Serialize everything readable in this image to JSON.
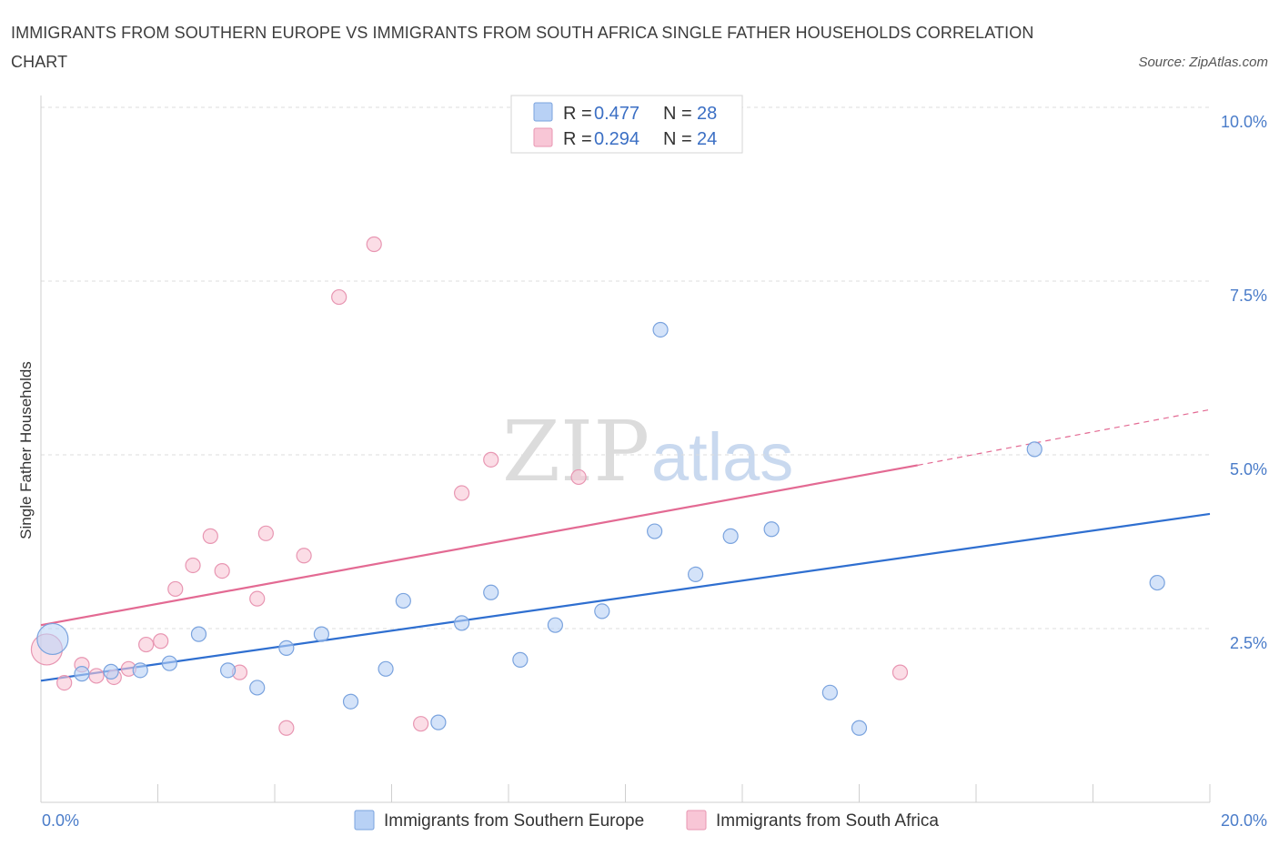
{
  "title": "IMMIGRANTS FROM SOUTHERN EUROPE VS IMMIGRANTS FROM SOUTH AFRICA SINGLE FATHER HOUSEHOLDS CORRELATION CHART",
  "source": "Source: ZipAtlas.com",
  "watermark": {
    "zip": "ZIP",
    "atlas": "atlas"
  },
  "colors": {
    "blue_fill": "#b8d1f5",
    "blue_stroke": "#7aa3de",
    "blue_line": "#2f6fd0",
    "pink_fill": "#f8c6d6",
    "pink_stroke": "#e896b2",
    "pink_line": "#e36a93",
    "grid": "#dddddd",
    "tick_label": "#4a7cc9"
  },
  "chart_data": {
    "type": "scatter",
    "title": "IMMIGRANTS FROM SOUTHERN EUROPE VS IMMIGRANTS FROM SOUTH AFRICA SINGLE FATHER HOUSEHOLDS CORRELATION CHART",
    "ylabel": "Single Father Households",
    "xlabel": "",
    "xlim": [
      0,
      20
    ],
    "ylim": [
      0,
      10
    ],
    "x_tick_labels": [
      "0.0%",
      "20.0%"
    ],
    "y_ticks": [
      2.5,
      5.0,
      7.5,
      10.0
    ],
    "y_tick_labels": [
      "2.5%",
      "5.0%",
      "7.5%",
      "10.0%"
    ],
    "grid": "horizontal dashed",
    "legend": [
      {
        "r_label": "R = ",
        "r_value": "0.477",
        "n_label": "N = ",
        "n_value": "28"
      },
      {
        "r_label": "R = ",
        "r_value": "0.294",
        "n_label": "N = ",
        "n_value": "24"
      }
    ],
    "series": [
      {
        "name": "Immigrants from Southern Europe",
        "color": "blue",
        "r": 0.477,
        "n": 28,
        "trend": {
          "x": [
            0,
            20
          ],
          "y": [
            1.75,
            4.15
          ]
        },
        "points": [
          {
            "x": 0.2,
            "y": 2.35,
            "big": true
          },
          {
            "x": 0.7,
            "y": 1.85
          },
          {
            "x": 1.2,
            "y": 1.88
          },
          {
            "x": 1.7,
            "y": 1.9
          },
          {
            "x": 2.2,
            "y": 2.0
          },
          {
            "x": 2.7,
            "y": 2.42
          },
          {
            "x": 3.2,
            "y": 1.9
          },
          {
            "x": 3.7,
            "y": 1.65
          },
          {
            "x": 4.2,
            "y": 2.22
          },
          {
            "x": 4.8,
            "y": 2.42
          },
          {
            "x": 5.3,
            "y": 1.45
          },
          {
            "x": 5.9,
            "y": 1.92
          },
          {
            "x": 6.2,
            "y": 2.9
          },
          {
            "x": 6.8,
            "y": 1.15
          },
          {
            "x": 7.2,
            "y": 2.58
          },
          {
            "x": 7.7,
            "y": 3.02
          },
          {
            "x": 8.2,
            "y": 2.05
          },
          {
            "x": 8.8,
            "y": 2.55
          },
          {
            "x": 9.6,
            "y": 2.75
          },
          {
            "x": 10.5,
            "y": 3.9
          },
          {
            "x": 10.6,
            "y": 6.8
          },
          {
            "x": 11.2,
            "y": 3.28
          },
          {
            "x": 11.8,
            "y": 3.83
          },
          {
            "x": 12.5,
            "y": 3.93
          },
          {
            "x": 13.5,
            "y": 1.58
          },
          {
            "x": 14.0,
            "y": 1.07
          },
          {
            "x": 17.0,
            "y": 5.08
          },
          {
            "x": 19.1,
            "y": 3.16
          }
        ]
      },
      {
        "name": "Immigrants from South Africa",
        "color": "pink",
        "r": 0.294,
        "n": 24,
        "trend": {
          "x": [
            0,
            15
          ],
          "y": [
            2.55,
            4.85
          ]
        },
        "trend_dashed": {
          "x": [
            15,
            20
          ],
          "y": [
            4.85,
            5.65
          ]
        },
        "points": [
          {
            "x": 0.1,
            "y": 2.2,
            "big": true
          },
          {
            "x": 0.4,
            "y": 1.72
          },
          {
            "x": 0.7,
            "y": 1.98
          },
          {
            "x": 0.95,
            "y": 1.82
          },
          {
            "x": 1.25,
            "y": 1.8
          },
          {
            "x": 1.5,
            "y": 1.92
          },
          {
            "x": 1.8,
            "y": 2.27
          },
          {
            "x": 2.05,
            "y": 2.32
          },
          {
            "x": 2.3,
            "y": 3.07
          },
          {
            "x": 2.6,
            "y": 3.41
          },
          {
            "x": 2.9,
            "y": 3.83
          },
          {
            "x": 3.1,
            "y": 3.33
          },
          {
            "x": 3.4,
            "y": 1.87
          },
          {
            "x": 3.7,
            "y": 2.93
          },
          {
            "x": 3.85,
            "y": 3.87
          },
          {
            "x": 4.2,
            "y": 1.07
          },
          {
            "x": 4.5,
            "y": 3.55
          },
          {
            "x": 5.1,
            "y": 7.27
          },
          {
            "x": 5.7,
            "y": 8.03
          },
          {
            "x": 6.5,
            "y": 1.13
          },
          {
            "x": 7.2,
            "y": 4.45
          },
          {
            "x": 7.7,
            "y": 4.93
          },
          {
            "x": 9.2,
            "y": 4.68
          },
          {
            "x": 14.7,
            "y": 1.87
          }
        ]
      }
    ]
  }
}
